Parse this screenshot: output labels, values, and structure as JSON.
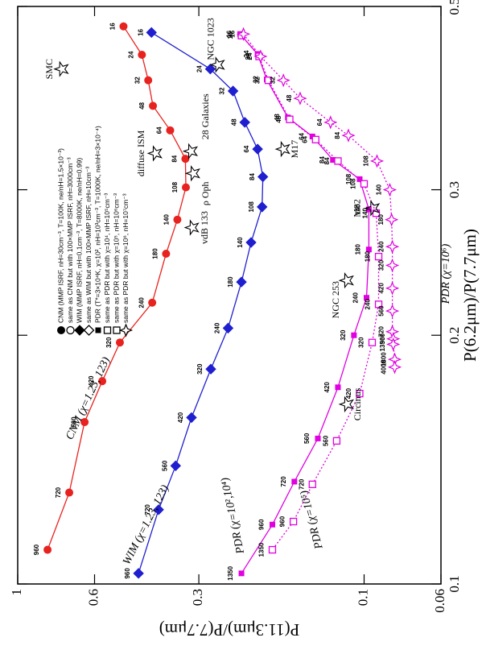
{
  "chart_data": {
    "type": "line",
    "x_label": "P(6.2μm)/P(7.7μm)",
    "y_label": "P(11.3μm)/P(7.7μm)",
    "xscale": "log",
    "yscale": "log",
    "xlim": [
      0.1,
      0.5
    ],
    "ylim": [
      0.06,
      1
    ],
    "xticks": [
      0.1,
      0.2,
      0.3,
      0.5
    ],
    "yticks": [
      0.06,
      0.1,
      0.3,
      0.6,
      1
    ],
    "grid": false,
    "series": [
      {
        "name": "CNM (χ=1.23, 123)",
        "color": "#e8231f",
        "marker": "circle",
        "line": "solid",
        "x": [
          0.473,
          0.437,
          0.407,
          0.379,
          0.354,
          0.327,
          0.302,
          0.276,
          0.251,
          0.219,
          0.196,
          0.176,
          0.157,
          0.129,
          0.11
        ],
        "values": [
          0.495,
          0.438,
          0.42,
          0.407,
          0.363,
          0.328,
          0.327,
          0.346,
          0.373,
          0.409,
          0.507,
          0.57,
          0.641,
          0.71,
          0.82
        ],
        "point_labels": [
          16,
          24,
          32,
          48,
          64,
          84,
          108,
          140,
          180,
          240,
          320,
          420,
          560,
          720,
          960
        ]
      },
      {
        "name": "WIM (χ=1.23, 123)",
        "color": "#1f1fcf",
        "marker": "diamond",
        "line": "solid",
        "x": [
          0.465,
          0.42,
          0.395,
          0.362,
          0.336,
          0.311,
          0.286,
          0.259,
          0.232,
          0.204,
          0.182,
          0.159,
          0.139,
          0.123,
          0.103
        ],
        "values": [
          0.411,
          0.278,
          0.239,
          0.221,
          0.203,
          0.196,
          0.197,
          0.212,
          0.226,
          0.247,
          0.277,
          0.315,
          0.35,
          0.392,
          0.448
        ],
        "point_labels": [
          16,
          24,
          32,
          48,
          64,
          84,
          108,
          140,
          180,
          240,
          320,
          420,
          560,
          720,
          960
        ]
      },
      {
        "name": "PDR (χ=10²,10⁴)",
        "color": "#e000e0",
        "marker": "square",
        "line": "solid",
        "x": [
          0.463,
          0.438,
          0.408,
          0.367,
          0.348,
          0.326,
          0.309,
          0.284,
          0.254,
          0.222,
          0.2,
          0.173,
          0.15,
          0.133,
          0.118,
          0.103
        ],
        "values": [
          0.228,
          0.203,
          0.191,
          0.166,
          0.141,
          0.123,
          0.103,
          0.0969,
          0.0969,
          0.0984,
          0.107,
          0.119,
          0.136,
          0.159,
          0.184,
          0.226
        ],
        "point_labels": [
          16,
          24,
          32,
          48,
          64,
          84,
          108,
          140,
          180,
          240,
          320,
          420,
          560,
          720,
          960,
          1350
        ]
      },
      {
        "name": "PDR (χ=10⁵)",
        "color": "#e000e0",
        "marker": "open-square",
        "line": "dotted",
        "x": [
          0.461,
          0.435,
          0.407,
          0.365,
          0.345,
          0.325,
          0.305,
          0.281,
          0.249,
          0.218,
          0.196,
          0.17,
          0.149,
          0.132,
          0.119,
          0.11
        ],
        "values": [
          0.226,
          0.201,
          0.189,
          0.164,
          0.138,
          0.119,
          0.1,
          0.0923,
          0.0908,
          0.0908,
          0.0948,
          0.103,
          0.12,
          0.141,
          0.16,
          0.184
        ],
        "point_labels": [
          16,
          24,
          32,
          48,
          64,
          84,
          108,
          140,
          180,
          240,
          320,
          420,
          560,
          720,
          960,
          1350
        ]
      },
      {
        "name": "PDR (χ=10⁶)",
        "color": "#e000e0",
        "marker": "star4",
        "line": "dotted",
        "x": [
          0.463,
          0.435,
          0.407,
          0.387,
          0.362,
          0.349,
          0.325,
          0.3,
          0.276,
          0.256,
          0.243,
          0.228,
          0.214,
          0.202,
          0.198,
          0.195,
          0.187,
          0.183
        ],
        "values": [
          0.223,
          0.199,
          0.171,
          0.153,
          0.125,
          0.111,
          0.0918,
          0.0843,
          0.0833,
          0.0829,
          0.0829,
          0.0829,
          0.0829,
          0.0829,
          0.0824,
          0.0824,
          0.0816,
          0.0816
        ],
        "point_labels": [
          16,
          24,
          32,
          48,
          64,
          84,
          108,
          140,
          180,
          240,
          320,
          420,
          560,
          720,
          960,
          1350,
          1800,
          4000
        ]
      }
    ],
    "objects": [
      {
        "name": "SMC",
        "x": 0.42,
        "y": 0.745
      },
      {
        "name": "NGC 1023",
        "x": 0.425,
        "y": 0.264
      },
      {
        "name": "diffuse ISM",
        "x": 0.332,
        "y": 0.4
      },
      {
        "name": "28 Galaxies",
        "x": 0.334,
        "y": 0.316
      },
      {
        "name": "ρ Oph",
        "x": 0.314,
        "y": 0.311
      },
      {
        "name": "M17",
        "x": 0.336,
        "y": 0.171
      },
      {
        "name": "vdB 133",
        "x": 0.27,
        "y": 0.313
      },
      {
        "name": "M82",
        "x": 0.285,
        "y": 0.0942
      },
      {
        "name": "NGC 253",
        "x": 0.233,
        "y": 0.112
      },
      {
        "name": "Circinus",
        "x": 0.165,
        "y": 0.112
      }
    ],
    "legend": [
      {
        "label": "CNM (MMP ISRF, nH=30cm⁻³, T=100K, ne/nH=1.5×10⁻³)",
        "marker": "circle",
        "color": "#000000"
      },
      {
        "label": "same as CNM but with 100×MMP ISRF, nH=3000cm⁻³",
        "marker": "open-circle",
        "color": "#000000"
      },
      {
        "label": "WIM (MMP ISRF, nH=0.1cm⁻³, T=8000K, ne/nH=0.99)",
        "marker": "diamond",
        "color": "#000000"
      },
      {
        "label": "same as WIM but with 100×MMP ISRF, nH=10cm⁻³",
        "marker": "open-diamond",
        "color": "#000000"
      },
      {
        "label": "PDR (T*=3×10⁴K, χ=10², nH=10³cm⁻³, T=1000K, ne/nH=3×10⁻⁴)",
        "marker": "square",
        "color": "#000000"
      },
      {
        "label": "same as PDR but with χ=10⁴, nH=10⁵cm⁻³",
        "marker": "open-square",
        "color": "#000000"
      },
      {
        "label": "same as PDR but with χ=10⁵, nH=10⁶cm⁻³",
        "marker": "open-square",
        "color": "#000000"
      },
      {
        "label": "same as PDR but with χ=10⁶, nH=10⁷cm⁻³",
        "marker": "star4",
        "color": "#000000"
      }
    ]
  }
}
